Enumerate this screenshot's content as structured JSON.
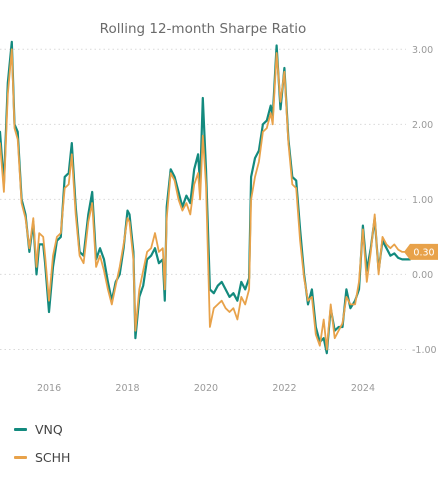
{
  "chart_data": {
    "type": "line",
    "title": "Rolling 12-month Sharpe Ratio",
    "xlabel": "",
    "ylabel": "",
    "xlim": [
      2014.75,
      2025.2
    ],
    "ylim": [
      -1.3,
      3.15
    ],
    "x_ticks": [
      2016,
      2018,
      2020,
      2022,
      2024
    ],
    "x_tick_labels": [
      "2016",
      "2018",
      "2020",
      "2022",
      "2024"
    ],
    "y_ticks": [
      3,
      2,
      1,
      0,
      -1
    ],
    "y_tick_labels": [
      "3.00",
      "2.00",
      "1.00",
      "0.00",
      "-1.00"
    ],
    "grid": "horizontal-dotted",
    "legend": "bottom-left",
    "last_value_label": "0.30",
    "series": [
      {
        "name": "VNQ",
        "color": "#138a7e",
        "points": [
          [
            2014.75,
            1.9
          ],
          [
            2014.85,
            1.2
          ],
          [
            2014.95,
            2.55
          ],
          [
            2015.05,
            3.1
          ],
          [
            2015.12,
            2.0
          ],
          [
            2015.2,
            1.9
          ],
          [
            2015.3,
            1.0
          ],
          [
            2015.4,
            0.8
          ],
          [
            2015.5,
            0.3
          ],
          [
            2015.6,
            0.7
          ],
          [
            2015.68,
            0.0
          ],
          [
            2015.75,
            0.4
          ],
          [
            2015.85,
            0.4
          ],
          [
            2015.9,
            0.15
          ],
          [
            2016.0,
            -0.5
          ],
          [
            2016.1,
            0.1
          ],
          [
            2016.2,
            0.45
          ],
          [
            2016.3,
            0.5
          ],
          [
            2016.4,
            1.3
          ],
          [
            2016.5,
            1.35
          ],
          [
            2016.58,
            1.75
          ],
          [
            2016.68,
            0.9
          ],
          [
            2016.78,
            0.3
          ],
          [
            2016.88,
            0.25
          ],
          [
            2017.0,
            0.8
          ],
          [
            2017.1,
            1.1
          ],
          [
            2017.2,
            0.2
          ],
          [
            2017.3,
            0.35
          ],
          [
            2017.4,
            0.2
          ],
          [
            2017.5,
            -0.1
          ],
          [
            2017.6,
            -0.35
          ],
          [
            2017.7,
            -0.1
          ],
          [
            2017.8,
            0.0
          ],
          [
            2017.9,
            0.35
          ],
          [
            2018.0,
            0.85
          ],
          [
            2018.05,
            0.8
          ],
          [
            2018.15,
            0.3
          ],
          [
            2018.2,
            -0.85
          ],
          [
            2018.3,
            -0.3
          ],
          [
            2018.4,
            -0.15
          ],
          [
            2018.5,
            0.2
          ],
          [
            2018.6,
            0.25
          ],
          [
            2018.7,
            0.35
          ],
          [
            2018.8,
            0.15
          ],
          [
            2018.9,
            0.2
          ],
          [
            2018.95,
            -0.35
          ],
          [
            2019.0,
            0.9
          ],
          [
            2019.1,
            1.4
          ],
          [
            2019.2,
            1.3
          ],
          [
            2019.3,
            1.1
          ],
          [
            2019.4,
            0.9
          ],
          [
            2019.5,
            1.05
          ],
          [
            2019.6,
            0.95
          ],
          [
            2019.7,
            1.4
          ],
          [
            2019.8,
            1.6
          ],
          [
            2019.85,
            1.2
          ],
          [
            2019.92,
            2.35
          ],
          [
            2020.0,
            1.4
          ],
          [
            2020.1,
            -0.2
          ],
          [
            2020.2,
            -0.25
          ],
          [
            2020.3,
            -0.15
          ],
          [
            2020.4,
            -0.1
          ],
          [
            2020.5,
            -0.2
          ],
          [
            2020.6,
            -0.3
          ],
          [
            2020.7,
            -0.25
          ],
          [
            2020.8,
            -0.35
          ],
          [
            2020.9,
            -0.1
          ],
          [
            2021.0,
            -0.2
          ],
          [
            2021.1,
            -0.05
          ],
          [
            2021.15,
            1.3
          ],
          [
            2021.25,
            1.55
          ],
          [
            2021.35,
            1.65
          ],
          [
            2021.45,
            2.0
          ],
          [
            2021.55,
            2.05
          ],
          [
            2021.65,
            2.25
          ],
          [
            2021.7,
            2.1
          ],
          [
            2021.8,
            3.05
          ],
          [
            2021.9,
            2.2
          ],
          [
            2022.0,
            2.75
          ],
          [
            2022.1,
            1.8
          ],
          [
            2022.2,
            1.3
          ],
          [
            2022.3,
            1.25
          ],
          [
            2022.4,
            0.6
          ],
          [
            2022.5,
            0.0
          ],
          [
            2022.6,
            -0.4
          ],
          [
            2022.7,
            -0.2
          ],
          [
            2022.8,
            -0.7
          ],
          [
            2022.9,
            -0.9
          ],
          [
            2023.0,
            -0.85
          ],
          [
            2023.08,
            -1.05
          ],
          [
            2023.18,
            -0.45
          ],
          [
            2023.28,
            -0.75
          ],
          [
            2023.38,
            -0.7
          ],
          [
            2023.48,
            -0.7
          ],
          [
            2023.58,
            -0.2
          ],
          [
            2023.68,
            -0.45
          ],
          [
            2023.8,
            -0.35
          ],
          [
            2023.9,
            -0.2
          ],
          [
            2024.0,
            0.65
          ],
          [
            2024.1,
            0.05
          ],
          [
            2024.2,
            0.35
          ],
          [
            2024.3,
            0.75
          ],
          [
            2024.4,
            0.05
          ],
          [
            2024.5,
            0.45
          ],
          [
            2024.6,
            0.35
          ],
          [
            2024.7,
            0.25
          ],
          [
            2024.8,
            0.28
          ],
          [
            2024.9,
            0.22
          ],
          [
            2025.0,
            0.2
          ],
          [
            2025.2,
            0.2
          ]
        ]
      },
      {
        "name": "SCHH",
        "color": "#e8a24a",
        "points": [
          [
            2014.75,
            1.75
          ],
          [
            2014.85,
            1.1
          ],
          [
            2014.95,
            2.4
          ],
          [
            2015.05,
            3.0
          ],
          [
            2015.12,
            1.95
          ],
          [
            2015.2,
            1.8
          ],
          [
            2015.3,
            0.95
          ],
          [
            2015.4,
            0.75
          ],
          [
            2015.5,
            0.35
          ],
          [
            2015.6,
            0.75
          ],
          [
            2015.68,
            0.1
          ],
          [
            2015.75,
            0.55
          ],
          [
            2015.85,
            0.5
          ],
          [
            2015.9,
            0.25
          ],
          [
            2016.0,
            -0.35
          ],
          [
            2016.1,
            0.25
          ],
          [
            2016.2,
            0.5
          ],
          [
            2016.3,
            0.55
          ],
          [
            2016.4,
            1.15
          ],
          [
            2016.5,
            1.2
          ],
          [
            2016.58,
            1.6
          ],
          [
            2016.68,
            0.8
          ],
          [
            2016.78,
            0.25
          ],
          [
            2016.88,
            0.15
          ],
          [
            2017.0,
            0.7
          ],
          [
            2017.1,
            0.95
          ],
          [
            2017.2,
            0.1
          ],
          [
            2017.3,
            0.25
          ],
          [
            2017.4,
            0.05
          ],
          [
            2017.5,
            -0.2
          ],
          [
            2017.6,
            -0.4
          ],
          [
            2017.7,
            -0.15
          ],
          [
            2017.8,
            0.1
          ],
          [
            2017.9,
            0.4
          ],
          [
            2018.0,
            0.75
          ],
          [
            2018.05,
            0.7
          ],
          [
            2018.15,
            0.2
          ],
          [
            2018.2,
            -0.75
          ],
          [
            2018.3,
            -0.2
          ],
          [
            2018.4,
            0.05
          ],
          [
            2018.5,
            0.3
          ],
          [
            2018.6,
            0.35
          ],
          [
            2018.7,
            0.55
          ],
          [
            2018.8,
            0.3
          ],
          [
            2018.9,
            0.35
          ],
          [
            2018.95,
            -0.2
          ],
          [
            2019.0,
            0.75
          ],
          [
            2019.1,
            1.35
          ],
          [
            2019.2,
            1.25
          ],
          [
            2019.3,
            1.0
          ],
          [
            2019.4,
            0.85
          ],
          [
            2019.5,
            0.95
          ],
          [
            2019.6,
            0.8
          ],
          [
            2019.7,
            1.2
          ],
          [
            2019.8,
            1.35
          ],
          [
            2019.85,
            1.0
          ],
          [
            2019.92,
            1.85
          ],
          [
            2020.0,
            1.2
          ],
          [
            2020.1,
            -0.7
          ],
          [
            2020.2,
            -0.45
          ],
          [
            2020.3,
            -0.4
          ],
          [
            2020.4,
            -0.35
          ],
          [
            2020.5,
            -0.45
          ],
          [
            2020.6,
            -0.5
          ],
          [
            2020.7,
            -0.45
          ],
          [
            2020.8,
            -0.6
          ],
          [
            2020.9,
            -0.3
          ],
          [
            2021.0,
            -0.4
          ],
          [
            2021.1,
            -0.2
          ],
          [
            2021.15,
            1.0
          ],
          [
            2021.25,
            1.3
          ],
          [
            2021.35,
            1.5
          ],
          [
            2021.45,
            1.9
          ],
          [
            2021.55,
            1.95
          ],
          [
            2021.65,
            2.15
          ],
          [
            2021.7,
            2.0
          ],
          [
            2021.8,
            2.95
          ],
          [
            2021.9,
            2.3
          ],
          [
            2022.0,
            2.7
          ],
          [
            2022.1,
            1.75
          ],
          [
            2022.2,
            1.2
          ],
          [
            2022.3,
            1.15
          ],
          [
            2022.4,
            0.45
          ],
          [
            2022.5,
            -0.05
          ],
          [
            2022.6,
            -0.35
          ],
          [
            2022.7,
            -0.3
          ],
          [
            2022.8,
            -0.8
          ],
          [
            2022.9,
            -0.95
          ],
          [
            2023.0,
            -0.6
          ],
          [
            2023.08,
            -1.0
          ],
          [
            2023.18,
            -0.4
          ],
          [
            2023.28,
            -0.85
          ],
          [
            2023.38,
            -0.75
          ],
          [
            2023.48,
            -0.65
          ],
          [
            2023.58,
            -0.3
          ],
          [
            2023.68,
            -0.4
          ],
          [
            2023.8,
            -0.4
          ],
          [
            2023.9,
            -0.1
          ],
          [
            2024.0,
            0.6
          ],
          [
            2024.1,
            -0.1
          ],
          [
            2024.2,
            0.3
          ],
          [
            2024.3,
            0.8
          ],
          [
            2024.4,
            0.0
          ],
          [
            2024.5,
            0.5
          ],
          [
            2024.6,
            0.4
          ],
          [
            2024.7,
            0.35
          ],
          [
            2024.8,
            0.4
          ],
          [
            2024.9,
            0.33
          ],
          [
            2025.0,
            0.3
          ],
          [
            2025.2,
            0.3
          ]
        ]
      }
    ]
  }
}
